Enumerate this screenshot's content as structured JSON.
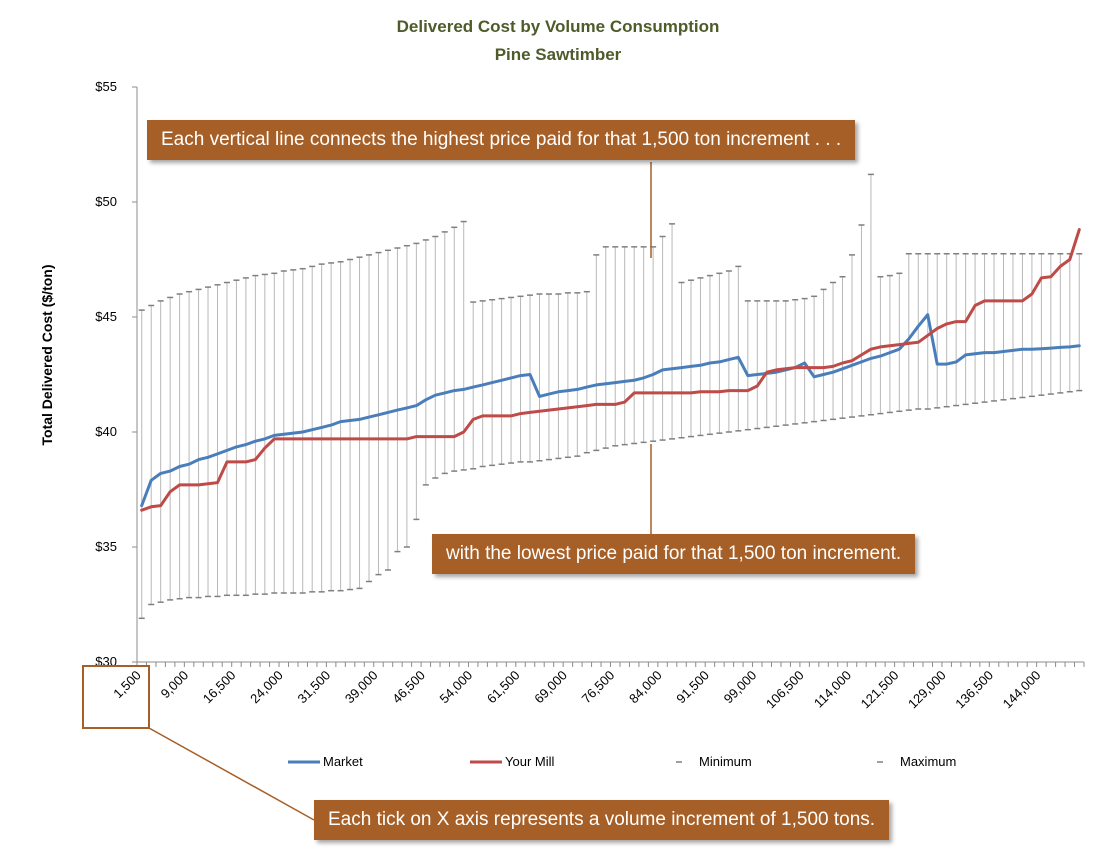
{
  "chart_data": {
    "type": "line",
    "title": "Delivered Cost by Volume Consumption",
    "subtitle": "Pine Sawtimber",
    "ylabel": "Total Delivered Cost ($/ton)",
    "xlabel": "",
    "ylim": [
      30,
      55
    ],
    "yticks": [
      "$30",
      "$35",
      "$40",
      "$45",
      "$50",
      "$55"
    ],
    "yticks_values": [
      30,
      35,
      40,
      45,
      50,
      55
    ],
    "x_start": 1500,
    "x_step": 1500,
    "point_count": 100,
    "xtick_labels": [
      "1,500",
      "9,000",
      "16,500",
      "24,000",
      "31,500",
      "39,000",
      "46,500",
      "54,000",
      "61,500",
      "69,000",
      "76,500",
      "84,000",
      "91,500",
      "99,000",
      "106,500",
      "114,000",
      "121,500",
      "129,000",
      "136,500",
      "144,000"
    ],
    "grid": false,
    "legend_position": "bottom",
    "series": [
      {
        "name": "Market",
        "color": "#4a7ebb",
        "style": "line",
        "values": [
          36.8,
          37.9,
          38.2,
          38.3,
          38.5,
          38.6,
          38.8,
          38.9,
          39.05,
          39.2,
          39.35,
          39.45,
          39.6,
          39.7,
          39.85,
          39.9,
          39.95,
          40.0,
          40.1,
          40.2,
          40.3,
          40.45,
          40.5,
          40.55,
          40.65,
          40.75,
          40.85,
          40.95,
          41.05,
          41.15,
          41.4,
          41.6,
          41.7,
          41.8,
          41.85,
          41.95,
          42.05,
          42.15,
          42.25,
          42.35,
          42.45,
          42.5,
          41.55,
          41.65,
          41.75,
          41.8,
          41.85,
          41.95,
          42.05,
          42.1,
          42.15,
          42.2,
          42.25,
          42.35,
          42.5,
          42.7,
          42.75,
          42.8,
          42.85,
          42.9,
          43.0,
          43.05,
          43.15,
          43.25,
          42.45,
          42.5,
          42.55,
          42.6,
          42.7,
          42.8,
          43.0,
          42.4,
          42.5,
          42.6,
          42.75,
          42.9,
          43.05,
          43.2,
          43.3,
          43.45,
          43.6,
          44.05,
          44.6,
          45.1,
          42.95,
          42.95,
          43.05,
          43.35,
          43.4,
          43.45,
          43.45,
          43.5,
          43.55,
          43.6,
          43.6,
          43.62,
          43.65,
          43.68,
          43.7,
          43.75
        ]
      },
      {
        "name": "Your Mill",
        "color": "#be4b48",
        "style": "line",
        "values": [
          36.6,
          36.75,
          36.8,
          37.4,
          37.7,
          37.7,
          37.7,
          37.75,
          37.8,
          38.7,
          38.7,
          38.7,
          38.8,
          39.3,
          39.7,
          39.7,
          39.7,
          39.7,
          39.7,
          39.7,
          39.7,
          39.7,
          39.7,
          39.7,
          39.7,
          39.7,
          39.7,
          39.7,
          39.7,
          39.8,
          39.8,
          39.8,
          39.8,
          39.8,
          40.0,
          40.55,
          40.7,
          40.7,
          40.7,
          40.7,
          40.8,
          40.85,
          40.9,
          40.95,
          41.0,
          41.05,
          41.1,
          41.15,
          41.2,
          41.2,
          41.2,
          41.3,
          41.7,
          41.7,
          41.7,
          41.7,
          41.7,
          41.7,
          41.7,
          41.75,
          41.75,
          41.75,
          41.8,
          41.8,
          41.8,
          42.0,
          42.6,
          42.7,
          42.75,
          42.8,
          42.8,
          42.8,
          42.8,
          42.85,
          43.0,
          43.1,
          43.35,
          43.6,
          43.7,
          43.75,
          43.8,
          43.85,
          43.9,
          44.2,
          44.5,
          44.7,
          44.8,
          44.8,
          45.5,
          45.7,
          45.7,
          45.7,
          45.7,
          45.7,
          46.0,
          46.7,
          46.75,
          47.2,
          47.5,
          48.8
        ]
      },
      {
        "name": "Minimum",
        "color": "#7f7f7f",
        "style": "marker",
        "values": [
          31.9,
          32.5,
          32.6,
          32.7,
          32.75,
          32.8,
          32.8,
          32.85,
          32.85,
          32.9,
          32.9,
          32.9,
          32.95,
          32.95,
          33.0,
          33.0,
          33.0,
          33.0,
          33.05,
          33.05,
          33.1,
          33.1,
          33.15,
          33.2,
          33.5,
          33.8,
          34.0,
          34.8,
          35.0,
          36.2,
          37.7,
          38.0,
          38.2,
          38.3,
          38.35,
          38.4,
          38.5,
          38.55,
          38.6,
          38.65,
          38.7,
          38.7,
          38.75,
          38.8,
          38.85,
          38.9,
          38.95,
          39.1,
          39.2,
          39.3,
          39.4,
          39.45,
          39.5,
          39.55,
          39.6,
          39.65,
          39.7,
          39.75,
          39.8,
          39.85,
          39.9,
          39.95,
          40.0,
          40.05,
          40.1,
          40.15,
          40.2,
          40.25,
          40.3,
          40.35,
          40.4,
          40.45,
          40.5,
          40.55,
          40.6,
          40.65,
          40.7,
          40.75,
          40.8,
          40.85,
          40.9,
          40.95,
          41.0,
          41.0,
          41.05,
          41.1,
          41.15,
          41.2,
          41.25,
          41.3,
          41.35,
          41.4,
          41.45,
          41.5,
          41.55,
          41.6,
          41.65,
          41.7,
          41.75,
          41.8
        ]
      },
      {
        "name": "Maximum",
        "color": "#7f7f7f",
        "style": "marker",
        "values": [
          45.3,
          45.5,
          45.7,
          45.85,
          46.0,
          46.1,
          46.2,
          46.3,
          46.4,
          46.5,
          46.6,
          46.7,
          46.8,
          46.85,
          46.9,
          47.0,
          47.05,
          47.1,
          47.2,
          47.3,
          47.35,
          47.4,
          47.5,
          47.6,
          47.7,
          47.8,
          47.9,
          48.0,
          48.1,
          48.2,
          48.35,
          48.5,
          48.7,
          48.9,
          49.15,
          45.65,
          45.7,
          45.75,
          45.8,
          45.85,
          45.9,
          45.95,
          46.0,
          46.0,
          46.0,
          46.05,
          46.05,
          46.1,
          47.7,
          48.05,
          48.05,
          48.05,
          48.05,
          48.05,
          48.05,
          48.5,
          49.05,
          46.5,
          46.6,
          46.7,
          46.8,
          46.9,
          47.0,
          47.2,
          45.7,
          45.7,
          45.7,
          45.7,
          45.7,
          45.75,
          45.8,
          45.9,
          46.2,
          46.5,
          46.75,
          47.7,
          49.0,
          51.2,
          46.75,
          46.8,
          46.9,
          47.75,
          47.75,
          47.75,
          47.75,
          47.75,
          47.75,
          47.75,
          47.75,
          47.75,
          47.75,
          47.75,
          47.75,
          47.75,
          47.75,
          47.75,
          47.75,
          47.75,
          47.75,
          47.75
        ]
      }
    ]
  },
  "legend": [
    {
      "label": "Market",
      "color": "#4a7ebb",
      "kind": "line"
    },
    {
      "label": "Your Mill",
      "color": "#be4b48",
      "kind": "line"
    },
    {
      "label": "Minimum",
      "color": "#7f7f7f",
      "kind": "marker"
    },
    {
      "label": "Maximum",
      "color": "#7f7f7f",
      "kind": "marker"
    }
  ],
  "annotations": {
    "top": "Each vertical line connects the highest price paid for that 1,500 ton increment . . .",
    "middle": "with the lowest price paid for that 1,500  ton increment.",
    "bottom": "Each tick on X axis represents a volume increment of 1,500  tons."
  },
  "colors": {
    "callout_bg": "#a65f27",
    "callout_text": "#ffffff",
    "title": "#4f5b2a",
    "highlight_box": "#a65f27"
  }
}
